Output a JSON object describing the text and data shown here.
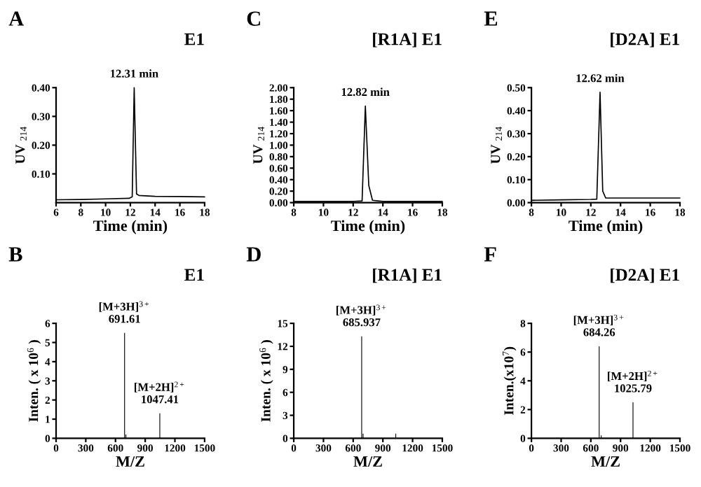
{
  "chart_data": [
    {
      "type": "line",
      "title": "E1",
      "xlabel": "Time (min)",
      "ylabel": "UV $_{214}$",
      "color": "#000000",
      "annotations": [
        "A",
        {
          "text": "12.31 min",
          "x": 12.31,
          "y": 0.4
        }
      ],
      "x": [
        6,
        8,
        10,
        11.9,
        12.15,
        12.31,
        12.5,
        12.7,
        14,
        16,
        18
      ],
      "values": [
        0.01,
        0.011,
        0.013,
        0.015,
        0.02,
        0.4,
        0.03,
        0.025,
        0.022,
        0.021,
        0.02
      ],
      "xlim": [
        6,
        18
      ],
      "ylim": [
        0,
        0.4
      ],
      "xticks": [
        6,
        8,
        10,
        12,
        14,
        16,
        18
      ],
      "yticks": [
        {
          "value": 0.1,
          "label": "0.10"
        },
        {
          "value": 0.2,
          "label": "0.20"
        },
        {
          "value": 0.3,
          "label": "0.30"
        },
        {
          "value": 0.4,
          "label": "0.40"
        }
      ]
    },
    {
      "type": "line",
      "title": "[R1A] E1",
      "xlabel": "Time (min)",
      "ylabel": "UV $_{214}$",
      "color": "#000000",
      "annotations": [
        "C",
        {
          "text": "12.82 min",
          "x": 12.82,
          "y": 1.68
        }
      ],
      "x": [
        8,
        10,
        12,
        12.6,
        12.82,
        13.05,
        13.3,
        14,
        16,
        18
      ],
      "values": [
        0.02,
        0.02,
        0.02,
        0.03,
        1.68,
        0.3,
        0.04,
        0.02,
        0.02,
        0.02
      ],
      "xlim": [
        8,
        18
      ],
      "ylim": [
        0,
        2
      ],
      "xticks": [
        8,
        10,
        12,
        14,
        16,
        18
      ],
      "yticks": [
        {
          "value": 0,
          "label": "0.00"
        },
        {
          "value": 0.2,
          "label": "0.20"
        },
        {
          "value": 0.4,
          "label": "0.40"
        },
        {
          "value": 0.6,
          "label": "0.60"
        },
        {
          "value": 0.8,
          "label": "0.80"
        },
        {
          "value": 1.0,
          "label": "1.00"
        },
        {
          "value": 1.2,
          "label": "1.20"
        },
        {
          "value": 1.4,
          "label": "1.40"
        },
        {
          "value": 1.6,
          "label": "1.60"
        },
        {
          "value": 1.8,
          "label": "1.80"
        },
        {
          "value": 2.0,
          "label": "2.00"
        }
      ]
    },
    {
      "type": "line",
      "title": "[D2A] E1",
      "xlabel": "Time (min)",
      "ylabel": "UV $_{214}$",
      "color": "#000000",
      "annotations": [
        "E",
        {
          "text": "12.62 min",
          "x": 12.62,
          "y": 0.48
        }
      ],
      "x": [
        8,
        10,
        12,
        12.4,
        12.62,
        12.8,
        13,
        14,
        16,
        18
      ],
      "values": [
        0.01,
        0.012,
        0.014,
        0.015,
        0.48,
        0.05,
        0.02,
        0.02,
        0.02,
        0.02
      ],
      "xlim": [
        8,
        18
      ],
      "ylim": [
        0,
        0.5
      ],
      "xticks": [
        8,
        10,
        12,
        14,
        16,
        18
      ],
      "yticks": [
        {
          "value": 0,
          "label": "0.00"
        },
        {
          "value": 0.1,
          "label": "0.10"
        },
        {
          "value": 0.2,
          "label": "0.20"
        },
        {
          "value": 0.3,
          "label": "0.30"
        },
        {
          "value": 0.4,
          "label": "0.40"
        },
        {
          "value": 0.5,
          "label": "0.50"
        }
      ]
    },
    {
      "type": "bar",
      "title": "E1",
      "xlabel": "M/Z",
      "ylabel": "Inten. ( x 10$^{6}$ )",
      "color": "#000000",
      "annotations": [
        "B",
        {
          "text": "[M+3H]$^{3+}$\n691.61",
          "x": 691.61,
          "y": 5.5
        },
        {
          "text": "[M+2H]$^{2+}$\n1047.41",
          "x": 1047.41,
          "y": 1.3
        }
      ],
      "x": [
        691.61,
        705,
        1047.41
      ],
      "values": [
        5.5,
        0.2,
        1.3
      ],
      "xlim": [
        0,
        1500
      ],
      "ylim": [
        0,
        6
      ],
      "xticks": [
        0,
        300,
        600,
        900,
        1200,
        1500
      ],
      "yticks": [
        0,
        1,
        2,
        3,
        4,
        5,
        6
      ]
    },
    {
      "type": "bar",
      "title": "[R1A] E1",
      "xlabel": "M/Z",
      "ylabel": "Inten. ( x 10$^{6}$ )",
      "color": "#000000",
      "annotations": [
        "D",
        {
          "text": "[M+3H]$^{3+}$\n685.937",
          "x": 685.937,
          "y": 13.3
        }
      ],
      "x": [
        685.937,
        700,
        1030
      ],
      "values": [
        13.3,
        0.6,
        0.6
      ],
      "xlim": [
        0,
        1500
      ],
      "ylim": [
        0,
        15
      ],
      "xticks": [
        0,
        300,
        600,
        900,
        1200,
        1500
      ],
      "yticks": [
        0,
        3,
        6,
        9,
        12,
        15
      ]
    },
    {
      "type": "bar",
      "title": "[D2A] E1",
      "xlabel": "M/Z",
      "ylabel": "Inten.(x10$^{7}$)",
      "color": "#000000",
      "annotations": [
        "F",
        {
          "text": "[M+3H]$^{3+}$\n684.26",
          "x": 684.26,
          "y": 6.4
        },
        {
          "text": "[M+2H]$^{2+}$\n1025.79",
          "x": 1025.79,
          "y": 2.5
        }
      ],
      "x": [
        684.26,
        705,
        1025.79
      ],
      "values": [
        6.4,
        0.2,
        2.5
      ],
      "xlim": [
        0,
        1500
      ],
      "ylim": [
        0,
        8
      ],
      "xticks": [
        0,
        300,
        600,
        900,
        1200,
        1500
      ],
      "yticks": [
        0,
        2,
        4,
        6,
        8
      ]
    }
  ]
}
